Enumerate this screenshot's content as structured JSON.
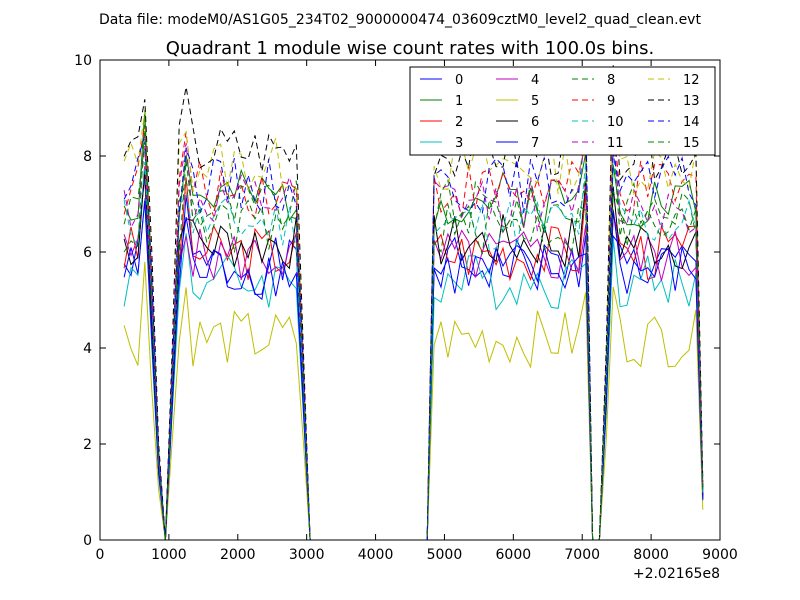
{
  "figure": {
    "suptitle": "Data file: modeM0/AS1G05_234T02_9000000474_03609cztM0_level2_quad_clean.evt"
  },
  "chart_data": {
    "type": "line",
    "title": "Quadrant 1 module wise count rates with 100.0s bins.",
    "xlabel": "",
    "ylabel": "",
    "x_offset_label": "+2.02165e8",
    "xlim": [
      0,
      9000
    ],
    "ylim": [
      0,
      10
    ],
    "xticks": [
      0,
      1000,
      2000,
      3000,
      4000,
      5000,
      6000,
      7000,
      8000,
      9000
    ],
    "yticks": [
      0,
      2,
      4,
      6,
      8,
      10
    ],
    "legend_position": "top-right",
    "series": [
      {
        "name": "0",
        "color": "#0000ff",
        "dash": "solid",
        "base": 5.7,
        "seed": 1
      },
      {
        "name": "1",
        "color": "#008000",
        "dash": "solid",
        "base": 7.1,
        "seed": 2
      },
      {
        "name": "2",
        "color": "#ff0000",
        "dash": "solid",
        "base": 6.0,
        "seed": 3
      },
      {
        "name": "3",
        "color": "#00bfbf",
        "dash": "solid",
        "base": 5.4,
        "seed": 4
      },
      {
        "name": "4",
        "color": "#bf00bf",
        "dash": "solid",
        "base": 5.9,
        "seed": 5
      },
      {
        "name": "5",
        "color": "#bfbf00",
        "dash": "solid",
        "base": 4.2,
        "seed": 6
      },
      {
        "name": "6",
        "color": "#000000",
        "dash": "solid",
        "base": 6.2,
        "seed": 7
      },
      {
        "name": "7",
        "color": "#0000ff",
        "dash": "solid",
        "base": 5.6,
        "seed": 8
      },
      {
        "name": "8",
        "color": "#008000",
        "dash": "dashed",
        "base": 6.9,
        "seed": 9
      },
      {
        "name": "9",
        "color": "#ff0000",
        "dash": "dashed",
        "base": 7.3,
        "seed": 10
      },
      {
        "name": "10",
        "color": "#00bfbf",
        "dash": "dashed",
        "base": 6.6,
        "seed": 11
      },
      {
        "name": "11",
        "color": "#bf00bf",
        "dash": "dashed",
        "base": 7.0,
        "seed": 12
      },
      {
        "name": "12",
        "color": "#bfbf00",
        "dash": "dashed",
        "base": 7.8,
        "seed": 13
      },
      {
        "name": "13",
        "color": "#000000",
        "dash": "dashed",
        "base": 8.1,
        "seed": 14
      },
      {
        "name": "14",
        "color": "#0000ff",
        "dash": "dashed",
        "base": 7.4,
        "seed": 15
      },
      {
        "name": "15",
        "color": "#008000",
        "dash": "dashed",
        "base": 6.5,
        "seed": 16
      }
    ]
  }
}
